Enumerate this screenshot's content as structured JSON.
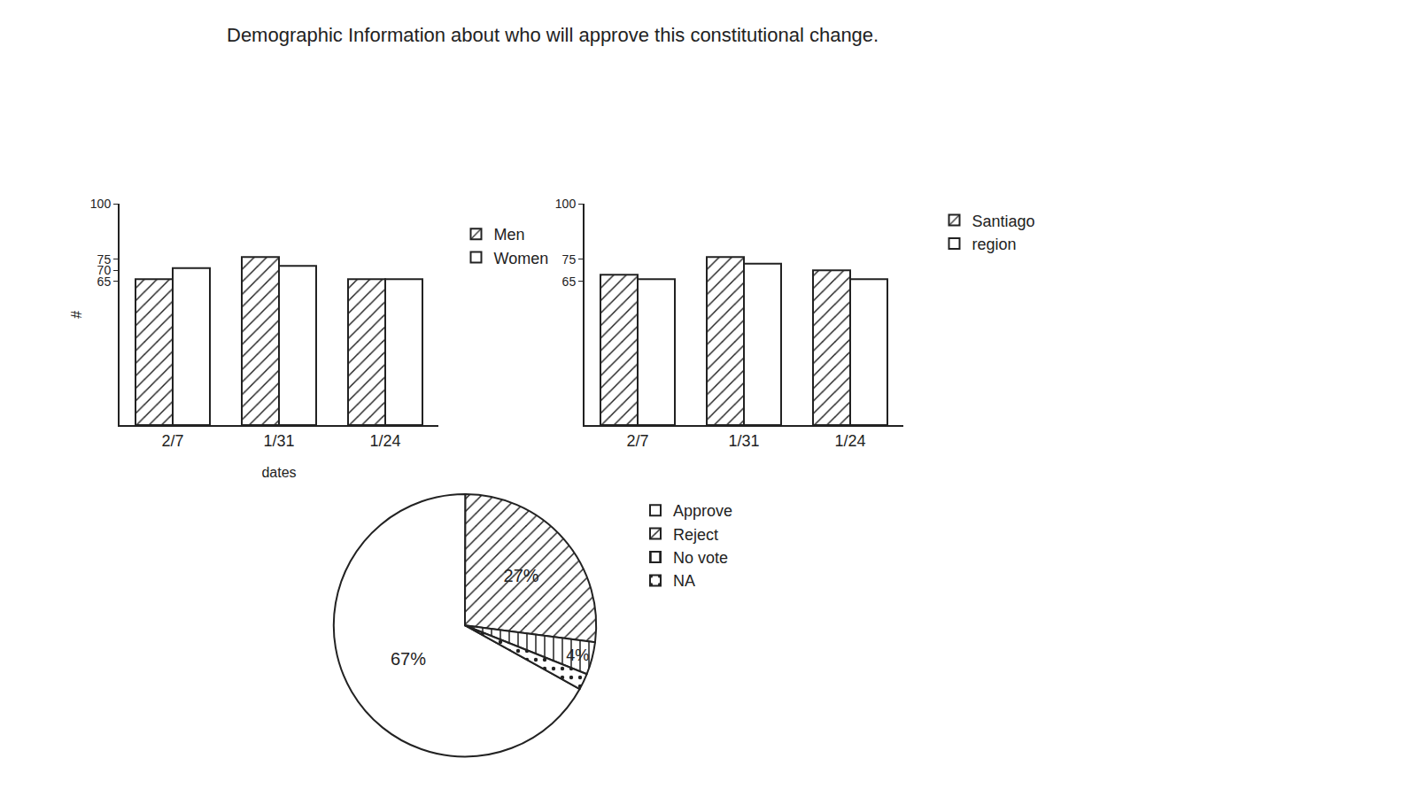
{
  "title": "Demographic Information about who will approve this constitutional change.",
  "chart_data": [
    {
      "type": "bar",
      "categories": [
        "2/7",
        "1/31",
        "1/24"
      ],
      "x_label": "dates",
      "y_label": "#",
      "series": [
        {
          "name": "Men",
          "color": "#ffffff",
          "values": [
            66,
            76,
            66
          ]
        },
        {
          "name": "Women",
          "color": "#ffffff",
          "values": [
            71,
            72,
            66
          ]
        }
      ],
      "ylim": [
        0,
        100
      ],
      "yticks": [
        65,
        70,
        75,
        100
      ],
      "grid": false,
      "legend": "right"
    },
    {
      "type": "bar",
      "categories": [
        "2/7",
        "1/31",
        "1/24"
      ],
      "series": [
        {
          "name": "Santiago",
          "color": "#ffffff",
          "values": [
            68,
            76,
            70
          ]
        },
        {
          "name": "region",
          "color": "#ffffff",
          "values": [
            66,
            73,
            66
          ]
        }
      ],
      "ylim": [
        0,
        100
      ],
      "yticks": [
        65,
        75,
        100
      ],
      "grid": false,
      "legend": "right"
    },
    {
      "type": "pie",
      "categories": [
        "Approve",
        "Reject",
        "No vote",
        "NA"
      ],
      "values": [
        67,
        27,
        4,
        2
      ],
      "value_labels": [
        "67%",
        "27%",
        "4%",
        null
      ],
      "colors": [
        "#ffffff",
        "#ffffff",
        "#ffffff",
        "#ffffff"
      ],
      "data_labels": true,
      "legend": "right"
    }
  ]
}
